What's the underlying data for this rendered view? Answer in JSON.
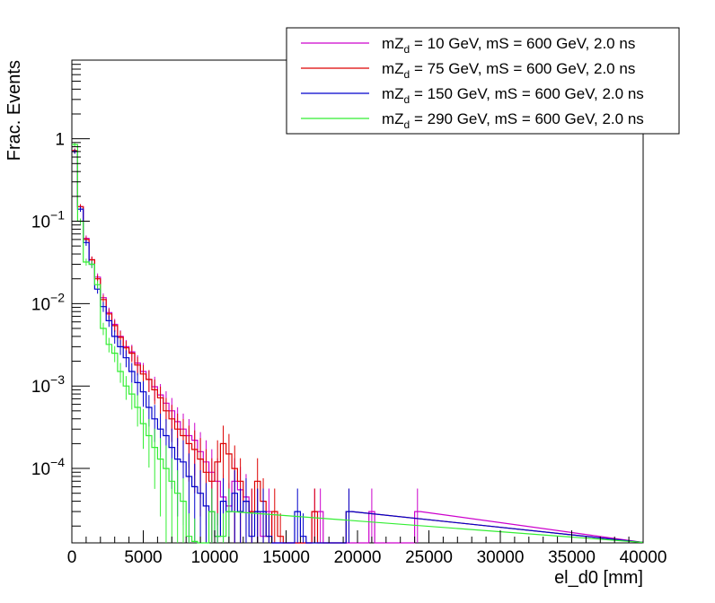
{
  "chart_data": {
    "type": "histogram",
    "title": "",
    "xlabel": "el_d0 [mm]",
    "ylabel": "Frac. Events",
    "xlim": [
      0,
      40000
    ],
    "ylim": [
      1.25e-05,
      9
    ],
    "yscale": "log",
    "bin_width": 400,
    "grid": false,
    "legend_position": "top-right",
    "x_ticks": [
      {
        "value": 0,
        "label": "0"
      },
      {
        "value": 5000,
        "label": "5000"
      },
      {
        "value": 10000,
        "label": "10000"
      },
      {
        "value": 15000,
        "label": "15000"
      },
      {
        "value": 20000,
        "label": "20000"
      },
      {
        "value": 25000,
        "label": "25000"
      },
      {
        "value": 30000,
        "label": "30000"
      },
      {
        "value": 35000,
        "label": "35000"
      },
      {
        "value": 40000,
        "label": "40000"
      }
    ],
    "y_ticks": [
      {
        "value": 1,
        "base": "1",
        "exp": ""
      },
      {
        "value": 0.1,
        "base": "10",
        "exp": "−1"
      },
      {
        "value": 0.01,
        "base": "10",
        "exp": "−2"
      },
      {
        "value": 0.001,
        "base": "10",
        "exp": "−3"
      },
      {
        "value": 0.0001,
        "base": "10",
        "exp": "−4"
      }
    ],
    "series": [
      {
        "name_main": "mZ",
        "name_sub": "d",
        "name_rest": " = 10 GeV, mS = 600 GeV, 2.0 ns",
        "color": "#cc00cc",
        "values": [
          0.7,
          0.15,
          0.062,
          0.034,
          0.021,
          0.0118,
          0.0078,
          0.0056,
          0.004,
          0.003,
          0.0026,
          0.0019,
          0.0015,
          0.0012,
          0.00098,
          0.00078,
          0.00062,
          0.0005,
          0.00037,
          0.0003,
          0.00025,
          0.00022,
          0.00016,
          0.00012,
          9e-05,
          7e-05,
          4.5e-05,
          3.5e-05,
          7e-05,
          5.5e-05,
          4.5e-05,
          3e-05,
          3e-05,
          1.5e-05,
          3e-05,
          0,
          0,
          0,
          0,
          0,
          0,
          0,
          3e-05,
          3e-05,
          0,
          0,
          0,
          0,
          0,
          0,
          0,
          0,
          3e-05,
          0,
          0,
          0,
          0,
          0,
          0,
          0,
          3e-05
        ]
      },
      {
        "name_main": "mZ",
        "name_sub": "d",
        "name_rest": " = 75 GeV, mS = 600 GeV, 2.0 ns",
        "color": "#dd0000",
        "values": [
          0.72,
          0.15,
          0.06,
          0.034,
          0.02,
          0.0112,
          0.0075,
          0.0054,
          0.0039,
          0.0029,
          0.0025,
          0.0018,
          0.0014,
          0.0012,
          0.0009,
          0.00072,
          0.0005,
          0.0004,
          0.0003,
          0.00025,
          0.0002,
          0.00017,
          0.00013,
          9e-05,
          7e-05,
          0.00012,
          0.0002,
          0.00015,
          0.0001,
          7e-05,
          4e-05,
          3e-05,
          7e-05,
          4e-05,
          1.5e-05,
          3e-05,
          1.5e-05,
          0,
          0,
          0,
          0,
          0,
          3e-05,
          0,
          0,
          0,
          0,
          0,
          3e-05
        ]
      },
      {
        "name_main": "mZ",
        "name_sub": "d",
        "name_rest": " = 150 GeV, mS = 600 GeV, 2.0 ns",
        "color": "#0000cc",
        "values": [
          0.7,
          0.14,
          0.055,
          0.03,
          0.015,
          0.0092,
          0.0062,
          0.004,
          0.003,
          0.0022,
          0.0015,
          0.0011,
          0.00085,
          0.00055,
          0.0004,
          0.0003,
          0.00025,
          0.00018,
          0.00013,
          0.00012,
          8e-05,
          6e-05,
          5e-05,
          3.5e-05,
          3e-05,
          1.5e-05,
          4e-05,
          3e-05,
          5e-05,
          3e-05,
          4e-05,
          1.5e-05,
          3e-05,
          3e-05,
          1.5e-05,
          0,
          0,
          0,
          0,
          3e-05,
          1.5e-05,
          0,
          0,
          0,
          0,
          0,
          0,
          0,
          3e-05
        ]
      },
      {
        "name_main": "mZ",
        "name_sub": "d",
        "name_rest": " = 290 GeV, mS = 600 GeV, 2.0 ns",
        "color": "#33ee33",
        "values": [
          0.85,
          0.1,
          0.032,
          0.03,
          0.017,
          0.005,
          0.0032,
          0.0025,
          0.0015,
          0.001,
          0.0008,
          0.00055,
          0.00035,
          0.00025,
          0.00018,
          0.00013,
          0.0001,
          7e-05,
          5e-05,
          4e-05,
          1.5e-05,
          1.3e-05,
          0,
          0,
          3e-05,
          1.5e-05,
          1.5e-05,
          3e-05
        ]
      }
    ]
  }
}
